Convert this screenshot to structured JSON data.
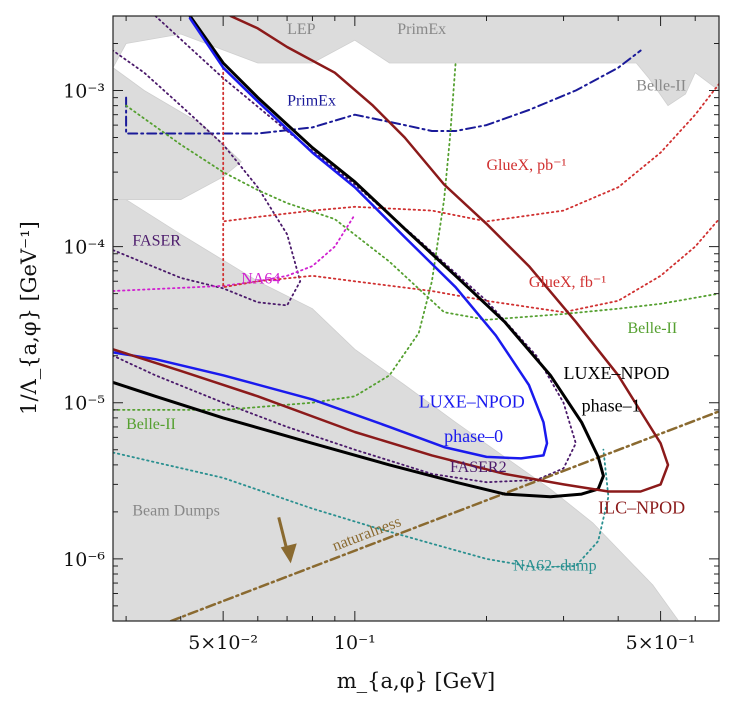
{
  "chart_data": {
    "type": "line",
    "title": "",
    "xlabel": "m_{a,φ} [GeV]",
    "ylabel": "1/Λ_{a,φ} [GeV⁻¹]",
    "xscale": "log",
    "yscale": "log",
    "xlim": [
      0.028,
      0.68
    ],
    "ylim": [
      4e-07,
      0.003
    ],
    "x_ticks": [
      {
        "value": 0.05,
        "label": "5×10⁻²"
      },
      {
        "value": 0.1,
        "label": "10⁻¹"
      },
      {
        "value": 0.5,
        "label": "5×10⁻¹"
      }
    ],
    "y_ticks": [
      {
        "value": 1e-06,
        "label": "10⁻⁶"
      },
      {
        "value": 1e-05,
        "label": "10⁻⁵"
      },
      {
        "value": 0.0001,
        "label": "10⁻⁴"
      },
      {
        "value": 0.001,
        "label": "10⁻³"
      }
    ],
    "excluded_regions": [
      {
        "name": "Beam Dumps",
        "color": "#dcdcdc",
        "points": [
          [
            0.028,
            4e-07
          ],
          [
            0.028,
            0.00022
          ],
          [
            0.03,
            0.0002
          ],
          [
            0.04,
            0.00012
          ],
          [
            0.06,
            6e-05
          ],
          [
            0.08,
            4e-05
          ],
          [
            0.1,
            2.2e-05
          ],
          [
            0.13,
            1.3e-05
          ],
          [
            0.17,
            7.5e-06
          ],
          [
            0.22,
            4.5e-06
          ],
          [
            0.28,
            2.8e-06
          ],
          [
            0.35,
            1.7e-06
          ],
          [
            0.42,
            1e-06
          ],
          [
            0.48,
            6.8e-07
          ],
          [
            0.55,
            4e-07
          ]
        ]
      },
      {
        "name": "LEP / PrimEx / Belle-II",
        "color": "#dcdcdc",
        "points": [
          [
            0.028,
            0.003
          ],
          [
            0.68,
            0.003
          ],
          [
            0.68,
            0.001
          ],
          [
            0.6,
            0.0013
          ],
          [
            0.57,
            0.00095
          ],
          [
            0.52,
            0.0008
          ],
          [
            0.47,
            0.0012
          ],
          [
            0.44,
            0.0015
          ],
          [
            0.12,
            0.0015
          ],
          [
            0.1,
            0.0021
          ],
          [
            0.08,
            0.0015
          ],
          [
            0.06,
            0.0015
          ],
          [
            0.04,
            0.0023
          ],
          [
            0.03,
            0.002
          ],
          [
            0.028,
            0.0014
          ]
        ]
      },
      {
        "name": "PrimEx-left",
        "color": "#dcdcdc",
        "points": [
          [
            0.028,
            0.0014
          ],
          [
            0.033,
            0.001
          ],
          [
            0.045,
            0.0006
          ],
          [
            0.055,
            0.00035
          ],
          [
            0.05,
            0.00028
          ],
          [
            0.04,
            0.0002
          ],
          [
            0.028,
            0.0002
          ]
        ]
      }
    ],
    "series": [
      {
        "name": "LUXE-NPOD phase-1",
        "color": "#000000",
        "style": "solid",
        "width": 3,
        "x": [
          0.042,
          0.05,
          0.06,
          0.08,
          0.1,
          0.13,
          0.17,
          0.22,
          0.28,
          0.33,
          0.36,
          0.37,
          0.36,
          0.33,
          0.28,
          0.22,
          0.17,
          0.12,
          0.08,
          0.05,
          0.035,
          0.028
        ],
        "y": [
          0.003,
          0.0015,
          0.0009,
          0.00043,
          0.00026,
          0.00013,
          6.5e-05,
          3.3e-05,
          1.5e-05,
          7.5e-06,
          4.5e-06,
          3.4e-06,
          2.8e-06,
          2.6e-06,
          2.5e-06,
          2.6e-06,
          3.1e-06,
          4e-06,
          5.5e-06,
          8e-06,
          1.1e-05,
          1.35e-05
        ]
      },
      {
        "name": "LUXE-NPOD phase-0",
        "color": "#1a1aee",
        "style": "solid",
        "width": 2.5,
        "x": [
          0.042,
          0.05,
          0.06,
          0.08,
          0.1,
          0.13,
          0.17,
          0.21,
          0.25,
          0.27,
          0.275,
          0.27,
          0.24,
          0.2,
          0.16,
          0.12,
          0.08,
          0.05,
          0.035,
          0.028
        ],
        "y": [
          0.0029,
          0.0014,
          0.00085,
          0.0004,
          0.00024,
          0.000115,
          5.5e-05,
          2.7e-05,
          1.3e-05,
          7.5e-06,
          5.5e-06,
          4.6e-06,
          4.4e-06,
          4.5e-06,
          5.2e-06,
          7e-06,
          1.05e-05,
          1.5e-05,
          1.9e-05,
          2.1e-05
        ]
      },
      {
        "name": "ILC-NPOD",
        "color": "#8b1a1a",
        "style": "solid",
        "width": 2.5,
        "x": [
          0.052,
          0.06,
          0.07,
          0.09,
          0.11,
          0.13,
          0.16,
          0.2,
          0.25,
          0.32,
          0.4,
          0.46,
          0.5,
          0.52,
          0.5,
          0.45,
          0.38,
          0.3,
          0.22,
          0.15,
          0.1,
          0.06,
          0.04,
          0.028
        ],
        "y": [
          0.003,
          0.0025,
          0.0019,
          0.0013,
          0.0008,
          0.0005,
          0.00025,
          0.00014,
          7.5e-05,
          3.3e-05,
          1.5e-05,
          8e-06,
          5.5e-06,
          4e-06,
          3e-06,
          2.7e-06,
          2.7e-06,
          3e-06,
          3.5e-06,
          4.6e-06,
          6.5e-06,
          1.1e-05,
          1.6e-05,
          2.2e-05
        ]
      },
      {
        "name": "PrimEx",
        "color": "#1a1a99",
        "style": "dashdot",
        "width": 2,
        "x": [
          0.03,
          0.03,
          0.06,
          0.08,
          0.1,
          0.13,
          0.15,
          0.17,
          0.2,
          0.25,
          0.32,
          0.4,
          0.45
        ],
        "y": [
          0.0009,
          0.00053,
          0.00053,
          0.00058,
          0.0007,
          0.0006,
          0.00055,
          0.00055,
          0.0006,
          0.00075,
          0.001,
          0.0014,
          0.0018
        ]
      },
      {
        "name": "FASER",
        "color": "#4b1a6b",
        "style": "dotted",
        "width": 1.8,
        "x": [
          0.028,
          0.04,
          0.05,
          0.06,
          0.07,
          0.075,
          0.07,
          0.06,
          0.05,
          0.04,
          0.033,
          0.028
        ],
        "y": [
          9.5e-05,
          6.3e-05,
          5.4e-05,
          4.4e-05,
          4.2e-05,
          6e-05,
          0.00012,
          0.00024,
          0.00045,
          0.0008,
          0.0013,
          0.0018
        ]
      },
      {
        "name": "FASER2",
        "color": "#4b1a6b",
        "style": "dotted",
        "width": 1.8,
        "x": [
          0.035,
          0.05,
          0.07,
          0.1,
          0.14,
          0.2,
          0.26,
          0.3,
          0.32,
          0.3,
          0.26,
          0.2,
          0.15,
          0.1,
          0.07,
          0.05,
          0.035,
          0.028
        ],
        "y": [
          0.003,
          0.0012,
          0.00055,
          0.00025,
          0.00011,
          4.5e-05,
          2e-05,
          1e-05,
          5.5e-06,
          3.8e-06,
          3.2e-06,
          3.1e-06,
          3.5e-06,
          5e-06,
          7e-06,
          1e-05,
          1.5e-05,
          2e-05
        ]
      },
      {
        "name": "NA64",
        "color": "#d020d0",
        "style": "dotted",
        "width": 1.8,
        "x": [
          0.028,
          0.05,
          0.06,
          0.07,
          0.08,
          0.09,
          0.1
        ],
        "y": [
          5.2e-05,
          5.6e-05,
          6e-05,
          6.5e-05,
          7.5e-05,
          0.0001,
          0.00016
        ]
      },
      {
        "name": "GlueX, pb⁻¹",
        "color": "#d03030",
        "style": "dotted",
        "width": 1.8,
        "x": [
          0.05,
          0.05,
          0.06,
          0.08,
          0.1,
          0.15,
          0.2,
          0.3,
          0.4,
          0.5,
          0.6,
          0.68
        ],
        "y": [
          0.0014,
          0.000145,
          0.000155,
          0.00017,
          0.00018,
          0.00017,
          0.000145,
          0.00017,
          0.00024,
          0.0004,
          0.0007,
          0.0011
        ]
      },
      {
        "name": "GlueX, fb⁻¹",
        "color": "#d03030",
        "style": "dotted",
        "width": 1.8,
        "x": [
          0.05,
          0.05,
          0.06,
          0.08,
          0.1,
          0.15,
          0.2,
          0.3,
          0.4,
          0.5,
          0.6,
          0.68
        ],
        "y": [
          0.00014,
          5.5e-05,
          6e-05,
          6.5e-05,
          6e-05,
          5.2e-05,
          4.5e-05,
          3.8e-05,
          4.5e-05,
          6.5e-05,
          0.0001,
          0.00015
        ]
      },
      {
        "name": "Belle-II (upper)",
        "color": "#55a030",
        "style": "dotted",
        "width": 1.8,
        "x": [
          0.03,
          0.04,
          0.05,
          0.06,
          0.07,
          0.09,
          0.12,
          0.16,
          0.2,
          0.3,
          0.4,
          0.5,
          0.68
        ],
        "y": [
          0.0008,
          0.00045,
          0.0003,
          0.00023,
          0.00019,
          0.00015,
          8e-05,
          3.8e-05,
          3.4e-05,
          3.7e-05,
          4e-05,
          4.3e-05,
          5e-05
        ]
      },
      {
        "name": "Belle-II (lower)",
        "color": "#55a030",
        "style": "dotted",
        "width": 1.8,
        "x": [
          0.028,
          0.05,
          0.08,
          0.1,
          0.12,
          0.14,
          0.15,
          0.16,
          0.165,
          0.17
        ],
        "y": [
          9e-06,
          9e-06,
          1e-05,
          1.1e-05,
          1.5e-05,
          2.8e-05,
          6e-05,
          0.0002,
          0.0005,
          0.0015
        ]
      },
      {
        "name": "NA62-dump",
        "color": "#2a9090",
        "style": "dotted",
        "width": 1.8,
        "x": [
          0.028,
          0.05,
          0.08,
          0.11,
          0.15,
          0.2,
          0.26,
          0.32,
          0.36,
          0.38,
          0.37
        ],
        "y": [
          4.8e-06,
          3.3e-06,
          2.1e-06,
          1.6e-06,
          1.25e-06,
          1e-06,
          8.8e-07,
          9e-07,
          1.3e-06,
          2.5e-06,
          5e-06
        ]
      },
      {
        "name": "naturalness",
        "color": "#8a6a30",
        "style": "dashdot",
        "width": 2.5,
        "x": [
          0.038,
          0.68
        ],
        "y": [
          4e-07,
          8.8e-06
        ]
      }
    ],
    "annotations": [
      {
        "text": "LEP",
        "color": "#888888",
        "x": 0.07,
        "y": 0.0023,
        "size": "small"
      },
      {
        "text": "PrimEx",
        "color": "#888888",
        "x": 0.125,
        "y": 0.0023,
        "size": "small"
      },
      {
        "text": "Belle-II",
        "color": "#888888",
        "x": 0.44,
        "y": 0.001,
        "size": "small"
      },
      {
        "text": "PrimEx",
        "color": "#1a1a99",
        "x": 0.07,
        "y": 0.0008,
        "size": "small"
      },
      {
        "text": "GlueX, pb⁻¹",
        "color": "#d03030",
        "x": 0.2,
        "y": 0.00031,
        "size": "small"
      },
      {
        "text": "GlueX, fb⁻¹",
        "color": "#d03030",
        "x": 0.25,
        "y": 5.5e-05,
        "size": "small"
      },
      {
        "text": "FASER",
        "color": "#4b1a6b",
        "x": 0.031,
        "y": 0.000102,
        "size": "small"
      },
      {
        "text": "NA64",
        "color": "#d020d0",
        "x": 0.055,
        "y": 5.8e-05,
        "size": "small"
      },
      {
        "text": "Belle-II",
        "color": "#55a030",
        "x": 0.42,
        "y": 2.8e-05,
        "size": "small"
      },
      {
        "text": "Belle-II",
        "color": "#55a030",
        "x": 0.03,
        "y": 6.8e-06,
        "size": "small"
      },
      {
        "text": "LUXE–NPOD",
        "color": "#000000",
        "x": 0.3,
        "y": 1.42e-05,
        "size": "big"
      },
      {
        "text": "phase–1",
        "color": "#000000",
        "x": 0.33,
        "y": 8.8e-06,
        "size": "big"
      },
      {
        "text": "LUXE–NPOD",
        "color": "#1a1aee",
        "x": 0.14,
        "y": 9.3e-06,
        "size": "big"
      },
      {
        "text": "phase–0",
        "color": "#1a1aee",
        "x": 0.16,
        "y": 5.6e-06,
        "size": "big"
      },
      {
        "text": "FASER2",
        "color": "#4b1a6b",
        "x": 0.165,
        "y": 3.6e-06,
        "size": "small"
      },
      {
        "text": "ILC–NPOD",
        "color": "#8b1a1a",
        "x": 0.36,
        "y": 1.95e-06,
        "size": "big"
      },
      {
        "text": "Beam Dumps",
        "color": "#888888",
        "x": 0.031,
        "y": 1.9e-06,
        "size": "small"
      },
      {
        "text": "NA62–dump",
        "color": "#2a9090",
        "x": 0.23,
        "y": 8.4e-07,
        "size": "small"
      },
      {
        "text": "naturalness",
        "color": "#8a6a30",
        "x": 0.09,
        "y": 1.12e-06,
        "size": "small",
        "rotate": -21
      }
    ]
  }
}
